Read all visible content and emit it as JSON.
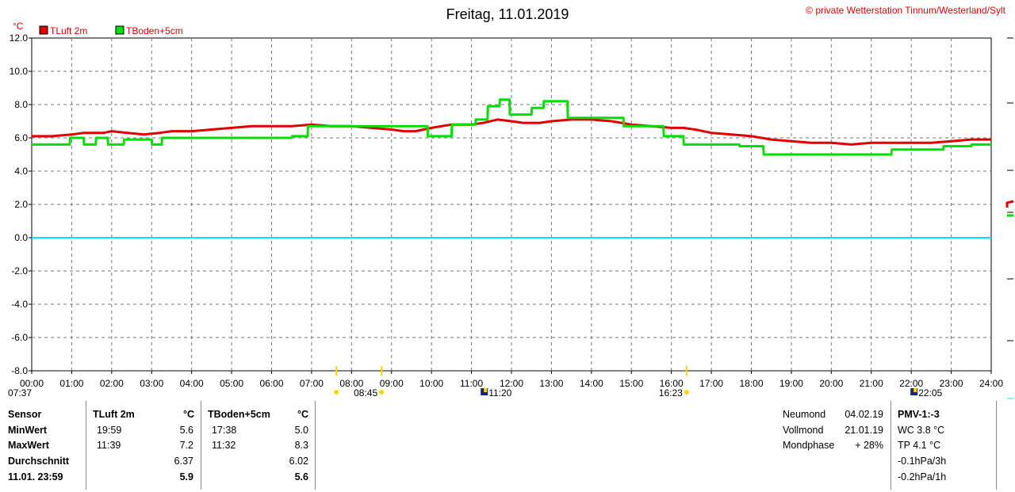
{
  "header": {
    "title": "Freitag, 11.01.2019",
    "copyright": "© private Wetterstation Tinnum/Westerland/Sylt",
    "unit": "°C"
  },
  "chart_data": {
    "type": "line",
    "title": "Freitag, 11.01.2019",
    "ylabel": "°C",
    "ylim": [
      -8,
      12
    ],
    "yticks": [
      "12.0",
      "10.0",
      "8.0",
      "6.0",
      "4.0",
      "2.0",
      "0.0",
      "-2.0",
      "-4.0",
      "-6.0",
      "-8.0"
    ],
    "xlim": [
      0,
      24
    ],
    "xticks": [
      "00:00",
      "01:00",
      "02:00",
      "03:00",
      "04:00",
      "05:00",
      "06:00",
      "07:00",
      "08:00",
      "09:00",
      "10:00",
      "11:00",
      "12:00",
      "13:00",
      "14:00",
      "15:00",
      "16:00",
      "17:00",
      "18:00",
      "19:00",
      "20:00",
      "21:00",
      "22:00",
      "23:00",
      "24:00"
    ],
    "grid": true,
    "legend_position": "top-left",
    "reference_line": {
      "y": 0,
      "color": "#00e5ff"
    },
    "series": [
      {
        "name": "TLuft 2m",
        "color": "#e00000",
        "x": [
          0,
          0.5,
          1,
          1.3,
          1.8,
          2,
          2.4,
          2.8,
          3.2,
          3.5,
          4,
          4.5,
          5,
          5.5,
          6,
          6.5,
          7,
          7.5,
          8,
          8.5,
          9,
          9.3,
          9.6,
          10,
          10.5,
          11,
          11.3,
          11.65,
          12,
          12.3,
          12.7,
          13,
          13.5,
          14,
          14.5,
          15,
          15.5,
          16,
          16.3,
          16.6,
          17,
          17.5,
          18,
          18.5,
          19,
          19.5,
          20,
          20.5,
          21,
          21.5,
          22,
          22.5,
          23,
          23.5,
          24
        ],
        "values": [
          6.1,
          6.1,
          6.2,
          6.3,
          6.3,
          6.4,
          6.3,
          6.2,
          6.3,
          6.4,
          6.4,
          6.5,
          6.6,
          6.7,
          6.7,
          6.7,
          6.8,
          6.7,
          6.7,
          6.6,
          6.5,
          6.4,
          6.4,
          6.6,
          6.8,
          6.8,
          6.9,
          7.1,
          7.0,
          6.9,
          6.9,
          7.0,
          7.1,
          7.1,
          7.0,
          6.8,
          6.7,
          6.6,
          6.6,
          6.5,
          6.3,
          6.2,
          6.1,
          5.9,
          5.8,
          5.7,
          5.7,
          5.6,
          5.7,
          5.7,
          5.7,
          5.7,
          5.8,
          5.9,
          5.9
        ]
      },
      {
        "name": "TBoden+5cm",
        "color": "#00e000",
        "x": [
          0,
          0.95,
          0.96,
          1.3,
          1.31,
          1.6,
          1.61,
          1.9,
          1.91,
          2.3,
          2.31,
          3.0,
          3.01,
          3.25,
          3.26,
          6.5,
          6.51,
          6.9,
          6.91,
          9.9,
          9.91,
          10.5,
          10.51,
          11.1,
          11.11,
          11.4,
          11.41,
          11.7,
          11.71,
          11.95,
          11.96,
          12.5,
          12.51,
          12.8,
          12.81,
          13.4,
          13.41,
          14.8,
          14.81,
          15.8,
          15.81,
          16.3,
          16.31,
          17.7,
          17.71,
          18.3,
          18.31,
          21.5,
          21.51,
          22.8,
          22.81,
          23.5,
          23.51,
          24
        ],
        "values": [
          5.6,
          5.6,
          6.0,
          6.0,
          5.6,
          5.6,
          6.0,
          6.0,
          5.6,
          5.6,
          5.9,
          5.9,
          5.6,
          5.6,
          6.0,
          6.0,
          6.1,
          6.1,
          6.7,
          6.7,
          6.1,
          6.1,
          6.8,
          6.8,
          7.1,
          7.1,
          7.9,
          7.9,
          8.3,
          8.3,
          7.4,
          7.4,
          7.8,
          7.8,
          8.2,
          8.2,
          7.2,
          7.2,
          6.7,
          6.7,
          6.1,
          6.1,
          5.6,
          5.6,
          5.5,
          5.5,
          5.0,
          5.0,
          5.3,
          5.3,
          5.5,
          5.5,
          5.6,
          5.6
        ]
      }
    ],
    "sun_moon_events": [
      {
        "time": "07:37",
        "hour": 7.62,
        "type": "sunrise",
        "marker": "yellow"
      },
      {
        "time": "08:45",
        "hour": 8.75,
        "type": "sunrise-mark",
        "marker": "yellow"
      },
      {
        "time": "11:20",
        "hour": 11.33,
        "type": "moon",
        "marker": "blue"
      },
      {
        "time": "16:23",
        "hour": 16.38,
        "type": "sunset-mark",
        "marker": "yellow"
      },
      {
        "time": "22:05",
        "hour": 22.08,
        "type": "moon",
        "marker": "blue"
      }
    ]
  },
  "stats": {
    "col_headers": {
      "sensor": "Sensor",
      "t1": "TLuft 2m",
      "unit1": "°C",
      "t2": "TBoden+5cm",
      "unit2": "°C"
    },
    "rows": [
      {
        "label": "MinWert",
        "t1_time": "19:59",
        "t1_val": "5.6",
        "t2_time": "17:38",
        "t2_val": "5.0"
      },
      {
        "label": "MaxWert",
        "t1_time": "11:39",
        "t1_val": "7.2",
        "t2_time": "11:32",
        "t2_val": "8.3"
      },
      {
        "label": "Durchschnitt",
        "t1_time": "",
        "t1_val": "6.37",
        "t2_time": "",
        "t2_val": "6.02"
      },
      {
        "label": "11.01. 23:59",
        "t1_time": "",
        "t1_val": "5.9",
        "t2_time": "",
        "t2_val": "5.6"
      }
    ],
    "moon": [
      {
        "label": "Neumond",
        "value": "04.02.19"
      },
      {
        "label": "Vollmond",
        "value": "21.01.19"
      },
      {
        "label": "Mondphase",
        "value": "+ 28%"
      }
    ],
    "pmv": {
      "title": "PMV-1:-3",
      "lines": [
        "WC 3.8 °C",
        "TP 4.1 °C",
        "-0.1hPa/3h",
        "-0.2hPa/1h"
      ]
    }
  }
}
